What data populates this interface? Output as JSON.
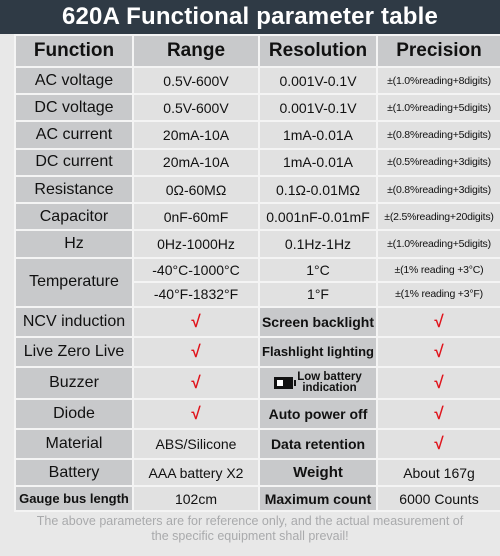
{
  "title": "620A Functional parameter table",
  "headers": [
    "Function",
    "Range",
    "Resolution",
    "Precision"
  ],
  "rows": {
    "ac_voltage": {
      "function": "AC voltage",
      "range": "0.5V-600V",
      "resolution": "0.001V-0.1V",
      "precision": "±(1.0%reading+8digits)"
    },
    "dc_voltage": {
      "function": "DC voltage",
      "range": "0.5V-600V",
      "resolution": "0.001V-0.1V",
      "precision": "±(1.0%reading+5digits)"
    },
    "ac_current": {
      "function": "AC current",
      "range": "20mA-10A",
      "resolution": "1mA-0.01A",
      "precision": "±(0.8%reading+5digits)"
    },
    "dc_current": {
      "function": "DC current",
      "range": "20mA-10A",
      "resolution": "1mA-0.01A",
      "precision": "±(0.5%reading+3digits)"
    },
    "resistance": {
      "function": "Resistance",
      "range": "0Ω-60MΩ",
      "resolution": "0.1Ω-0.01MΩ",
      "precision": "±(0.8%reading+3digits)"
    },
    "capacitor": {
      "function": "Capacitor",
      "range": "0nF-60mF",
      "resolution": "0.001nF-0.01mF",
      "precision": "±(2.5%reading+20digits)"
    },
    "hz": {
      "function": "Hz",
      "range": "0Hz-1000Hz",
      "resolution": "0.1Hz-1Hz",
      "precision": "±(1.0%reading+5digits)"
    },
    "temperature": {
      "function": "Temperature",
      "c": {
        "range": "-40°C-1000°C",
        "resolution": "1°C",
        "precision": "±(1% reading +3°C)"
      },
      "f": {
        "range": "-40°F-1832°F",
        "resolution": "1°F",
        "precision": "±(1% reading +3°F)"
      }
    }
  },
  "features": {
    "tick": "√",
    "ncv": "NCV induction",
    "screen_backlight": "Screen backlight",
    "live_zero_live": "Live Zero Live",
    "flashlight": "Flashlight lighting",
    "buzzer": "Buzzer",
    "low_battery": "Low battery indication",
    "low_battery_line1": "Low battery",
    "low_battery_line2": "indication",
    "diode": "Diode",
    "auto_power_off": "Auto power off",
    "material_label": "Material",
    "material_value": "ABS/Silicone",
    "data_retention": "Data retention",
    "battery_label": "Battery",
    "battery_value": "AAA battery X2",
    "weight_label": "Weight",
    "weight_value": "About 167g",
    "gauge_label": "Gauge bus length",
    "gauge_value": "102cm",
    "max_count_label": "Maximum count",
    "max_count_value": "6000 Counts"
  },
  "footer": {
    "line1": "The above parameters are for reference only, and the actual measurement of",
    "line2": "the specific equipment shall prevail!"
  },
  "colors": {
    "title_bg": "#2f3a45",
    "tick": "#e0141c",
    "label_bg": "#c8c9cb",
    "value_bg": "#e1e1e1"
  },
  "icons": [
    "battery-icon",
    "check-icon"
  ]
}
